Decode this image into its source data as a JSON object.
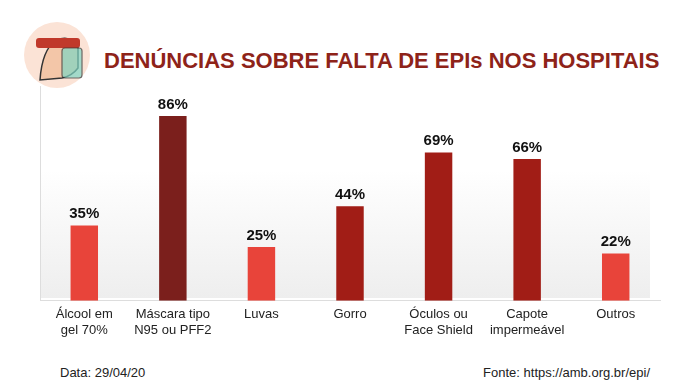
{
  "chart_data": {
    "type": "bar",
    "title": "DENÚNCIAS SOBRE FALTA DE EPIs NOS HOSPITAIS",
    "categories": [
      [
        "Álcool em",
        "gel 70%"
      ],
      [
        "Máscara tipo",
        "N95 ou PFF2"
      ],
      "Luvas",
      "Gorro",
      [
        "Óculos ou",
        "Face Shield"
      ],
      [
        "Capote",
        "impermeável"
      ],
      "Outros"
    ],
    "values": [
      35,
      86,
      25,
      44,
      69,
      66,
      22
    ],
    "value_labels": [
      "35%",
      "86%",
      "25%",
      "44%",
      "69%",
      "66%",
      "22%"
    ],
    "colors": [
      "#e8443a",
      "#7b1f1c",
      "#e8443a",
      "#a11d16",
      "#a11d16",
      "#a11d16",
      "#e8443a"
    ],
    "ylim": [
      0,
      100
    ],
    "grid": false,
    "data_labels": true,
    "tick_labels": "x",
    "annotations": [
      "Data: 29/04/20",
      "Fonte: https://amb.org.br/epi/"
    ]
  }
}
